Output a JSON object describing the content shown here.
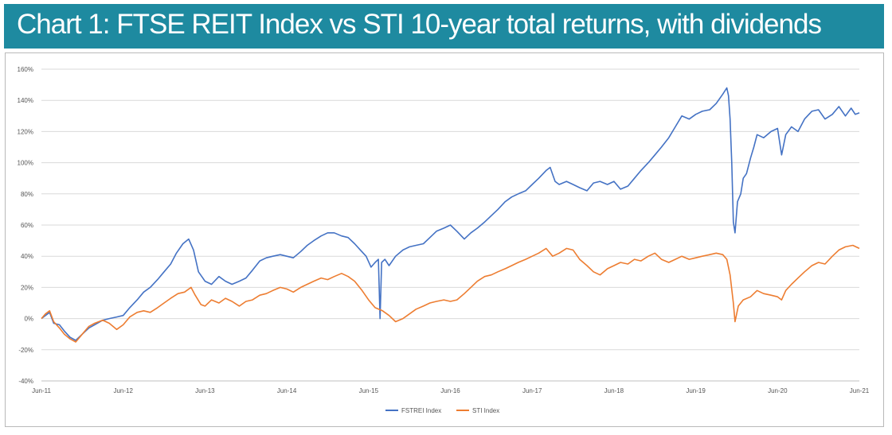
{
  "title": "Chart 1: FTSE REIT Index vs STI 10-year total returns, with dividends",
  "colors": {
    "banner": "#1e8aa0",
    "reit": "#4472c4",
    "sti": "#ed7d31",
    "grid": "#d9d9d9"
  },
  "chart_data": {
    "type": "line",
    "x_tick_labels": [
      "Jun-11",
      "Jun-12",
      "Jun-13",
      "Jun-14",
      "Jun-15",
      "Jun-16",
      "Jun-17",
      "Jun-18",
      "Jun-19",
      "Jun-20",
      "Jun-21"
    ],
    "y_tick_labels": [
      "160%",
      "140%",
      "120%",
      "100%",
      "80%",
      "60%",
      "40%",
      "20%",
      "0%",
      "-20%",
      "-40%"
    ],
    "ylim": [
      -40,
      160
    ],
    "xlim": [
      2011.5,
      2021.5
    ],
    "grid": true,
    "legend_position": "bottom",
    "xlabel": "",
    "ylabel": "",
    "series": [
      {
        "name": "FSTREI Index",
        "color": "#4472c4",
        "points": [
          [
            2011.5,
            0
          ],
          [
            2011.55,
            2
          ],
          [
            2011.6,
            4
          ],
          [
            2011.65,
            -3
          ],
          [
            2011.72,
            -4
          ],
          [
            2011.78,
            -8
          ],
          [
            2011.85,
            -12
          ],
          [
            2011.92,
            -14
          ],
          [
            2012.0,
            -10
          ],
          [
            2012.08,
            -6
          ],
          [
            2012.15,
            -4
          ],
          [
            2012.25,
            -1
          ],
          [
            2012.33,
            0
          ],
          [
            2012.42,
            1
          ],
          [
            2012.5,
            2
          ],
          [
            2012.58,
            7
          ],
          [
            2012.67,
            12
          ],
          [
            2012.75,
            17
          ],
          [
            2012.83,
            20
          ],
          [
            2012.92,
            25
          ],
          [
            2013.0,
            30
          ],
          [
            2013.08,
            35
          ],
          [
            2013.15,
            42
          ],
          [
            2013.23,
            48
          ],
          [
            2013.3,
            51
          ],
          [
            2013.36,
            44
          ],
          [
            2013.42,
            30
          ],
          [
            2013.5,
            24
          ],
          [
            2013.58,
            22
          ],
          [
            2013.67,
            27
          ],
          [
            2013.75,
            24
          ],
          [
            2013.83,
            22
          ],
          [
            2013.92,
            24
          ],
          [
            2014.0,
            26
          ],
          [
            2014.08,
            31
          ],
          [
            2014.17,
            37
          ],
          [
            2014.25,
            39
          ],
          [
            2014.33,
            40
          ],
          [
            2014.42,
            41
          ],
          [
            2014.5,
            40
          ],
          [
            2014.58,
            39
          ],
          [
            2014.67,
            43
          ],
          [
            2014.75,
            47
          ],
          [
            2014.83,
            50
          ],
          [
            2014.92,
            53
          ],
          [
            2015.0,
            55
          ],
          [
            2015.08,
            55
          ],
          [
            2015.17,
            53
          ],
          [
            2015.25,
            52
          ],
          [
            2015.33,
            48
          ],
          [
            2015.4,
            44
          ],
          [
            2015.47,
            40
          ],
          [
            2015.53,
            33
          ],
          [
            2015.58,
            36
          ],
          [
            2015.62,
            38
          ],
          [
            2015.64,
            0
          ],
          [
            2015.66,
            36
          ],
          [
            2015.7,
            38
          ],
          [
            2015.75,
            34
          ],
          [
            2015.83,
            40
          ],
          [
            2015.92,
            44
          ],
          [
            2016.0,
            46
          ],
          [
            2016.08,
            47
          ],
          [
            2016.17,
            48
          ],
          [
            2016.25,
            52
          ],
          [
            2016.33,
            56
          ],
          [
            2016.42,
            58
          ],
          [
            2016.5,
            60
          ],
          [
            2016.58,
            56
          ],
          [
            2016.67,
            51
          ],
          [
            2016.75,
            55
          ],
          [
            2016.83,
            58
          ],
          [
            2016.92,
            62
          ],
          [
            2017.0,
            66
          ],
          [
            2017.08,
            70
          ],
          [
            2017.17,
            75
          ],
          [
            2017.25,
            78
          ],
          [
            2017.33,
            80
          ],
          [
            2017.42,
            82
          ],
          [
            2017.5,
            86
          ],
          [
            2017.58,
            90
          ],
          [
            2017.67,
            95
          ],
          [
            2017.72,
            97
          ],
          [
            2017.78,
            88
          ],
          [
            2017.83,
            86
          ],
          [
            2017.92,
            88
          ],
          [
            2018.0,
            86
          ],
          [
            2018.08,
            84
          ],
          [
            2018.17,
            82
          ],
          [
            2018.25,
            87
          ],
          [
            2018.33,
            88
          ],
          [
            2018.42,
            86
          ],
          [
            2018.5,
            88
          ],
          [
            2018.58,
            83
          ],
          [
            2018.67,
            85
          ],
          [
            2018.75,
            90
          ],
          [
            2018.83,
            95
          ],
          [
            2018.92,
            100
          ],
          [
            2019.0,
            105
          ],
          [
            2019.08,
            110
          ],
          [
            2019.17,
            116
          ],
          [
            2019.25,
            123
          ],
          [
            2019.33,
            130
          ],
          [
            2019.42,
            128
          ],
          [
            2019.5,
            131
          ],
          [
            2019.58,
            133
          ],
          [
            2019.67,
            134
          ],
          [
            2019.75,
            138
          ],
          [
            2019.83,
            144
          ],
          [
            2019.88,
            148
          ],
          [
            2019.9,
            143
          ],
          [
            2019.92,
            128
          ],
          [
            2019.94,
            100
          ],
          [
            2019.96,
            62
          ],
          [
            2019.98,
            55
          ],
          [
            2020.01,
            75
          ],
          [
            2020.05,
            80
          ],
          [
            2020.08,
            90
          ],
          [
            2020.12,
            93
          ],
          [
            2020.17,
            103
          ],
          [
            2020.21,
            110
          ],
          [
            2020.25,
            118
          ],
          [
            2020.33,
            116
          ],
          [
            2020.42,
            120
          ],
          [
            2020.5,
            122
          ],
          [
            2020.55,
            105
          ],
          [
            2020.6,
            118
          ],
          [
            2020.67,
            123
          ],
          [
            2020.75,
            120
          ],
          [
            2020.83,
            128
          ],
          [
            2020.92,
            133
          ],
          [
            2021.0,
            134
          ],
          [
            2021.08,
            128
          ],
          [
            2021.17,
            131
          ],
          [
            2021.25,
            136
          ],
          [
            2021.33,
            130
          ],
          [
            2021.4,
            135
          ],
          [
            2021.45,
            131
          ],
          [
            2021.5,
            132
          ]
        ]
      },
      {
        "name": "STI Index",
        "color": "#ed7d31",
        "points": [
          [
            2011.5,
            0
          ],
          [
            2011.55,
            3
          ],
          [
            2011.6,
            5
          ],
          [
            2011.65,
            -2
          ],
          [
            2011.72,
            -6
          ],
          [
            2011.78,
            -10
          ],
          [
            2011.85,
            -13
          ],
          [
            2011.92,
            -15
          ],
          [
            2012.0,
            -10
          ],
          [
            2012.08,
            -5
          ],
          [
            2012.15,
            -3
          ],
          [
            2012.25,
            -1
          ],
          [
            2012.33,
            -3
          ],
          [
            2012.42,
            -7
          ],
          [
            2012.5,
            -4
          ],
          [
            2012.58,
            1
          ],
          [
            2012.67,
            4
          ],
          [
            2012.75,
            5
          ],
          [
            2012.83,
            4
          ],
          [
            2012.92,
            7
          ],
          [
            2013.0,
            10
          ],
          [
            2013.08,
            13
          ],
          [
            2013.17,
            16
          ],
          [
            2013.25,
            17
          ],
          [
            2013.33,
            20
          ],
          [
            2013.38,
            15
          ],
          [
            2013.45,
            9
          ],
          [
            2013.5,
            8
          ],
          [
            2013.58,
            12
          ],
          [
            2013.67,
            10
          ],
          [
            2013.75,
            13
          ],
          [
            2013.83,
            11
          ],
          [
            2013.92,
            8
          ],
          [
            2014.0,
            11
          ],
          [
            2014.08,
            12
          ],
          [
            2014.17,
            15
          ],
          [
            2014.25,
            16
          ],
          [
            2014.33,
            18
          ],
          [
            2014.42,
            20
          ],
          [
            2014.5,
            19
          ],
          [
            2014.58,
            17
          ],
          [
            2014.67,
            20
          ],
          [
            2014.75,
            22
          ],
          [
            2014.83,
            24
          ],
          [
            2014.92,
            26
          ],
          [
            2015.0,
            25
          ],
          [
            2015.08,
            27
          ],
          [
            2015.17,
            29
          ],
          [
            2015.25,
            27
          ],
          [
            2015.33,
            24
          ],
          [
            2015.42,
            18
          ],
          [
            2015.5,
            12
          ],
          [
            2015.58,
            7
          ],
          [
            2015.67,
            5
          ],
          [
            2015.75,
            2
          ],
          [
            2015.83,
            -2
          ],
          [
            2015.92,
            0
          ],
          [
            2016.0,
            3
          ],
          [
            2016.08,
            6
          ],
          [
            2016.17,
            8
          ],
          [
            2016.25,
            10
          ],
          [
            2016.33,
            11
          ],
          [
            2016.42,
            12
          ],
          [
            2016.5,
            11
          ],
          [
            2016.58,
            12
          ],
          [
            2016.67,
            16
          ],
          [
            2016.75,
            20
          ],
          [
            2016.83,
            24
          ],
          [
            2016.92,
            27
          ],
          [
            2017.0,
            28
          ],
          [
            2017.08,
            30
          ],
          [
            2017.17,
            32
          ],
          [
            2017.25,
            34
          ],
          [
            2017.33,
            36
          ],
          [
            2017.42,
            38
          ],
          [
            2017.5,
            40
          ],
          [
            2017.58,
            42
          ],
          [
            2017.67,
            45
          ],
          [
            2017.75,
            40
          ],
          [
            2017.83,
            42
          ],
          [
            2017.92,
            45
          ],
          [
            2018.0,
            44
          ],
          [
            2018.08,
            38
          ],
          [
            2018.17,
            34
          ],
          [
            2018.25,
            30
          ],
          [
            2018.33,
            28
          ],
          [
            2018.42,
            32
          ],
          [
            2018.5,
            34
          ],
          [
            2018.58,
            36
          ],
          [
            2018.67,
            35
          ],
          [
            2018.75,
            38
          ],
          [
            2018.83,
            37
          ],
          [
            2018.92,
            40
          ],
          [
            2019.0,
            42
          ],
          [
            2019.08,
            38
          ],
          [
            2019.17,
            36
          ],
          [
            2019.25,
            38
          ],
          [
            2019.33,
            40
          ],
          [
            2019.42,
            38
          ],
          [
            2019.5,
            39
          ],
          [
            2019.58,
            40
          ],
          [
            2019.67,
            41
          ],
          [
            2019.75,
            42
          ],
          [
            2019.83,
            41
          ],
          [
            2019.88,
            38
          ],
          [
            2019.92,
            28
          ],
          [
            2019.96,
            10
          ],
          [
            2019.98,
            -2
          ],
          [
            2020.02,
            8
          ],
          [
            2020.08,
            12
          ],
          [
            2020.17,
            14
          ],
          [
            2020.25,
            18
          ],
          [
            2020.33,
            16
          ],
          [
            2020.42,
            15
          ],
          [
            2020.5,
            14
          ],
          [
            2020.55,
            12
          ],
          [
            2020.6,
            18
          ],
          [
            2020.67,
            22
          ],
          [
            2020.75,
            26
          ],
          [
            2020.83,
            30
          ],
          [
            2020.92,
            34
          ],
          [
            2021.0,
            36
          ],
          [
            2021.08,
            35
          ],
          [
            2021.17,
            40
          ],
          [
            2021.25,
            44
          ],
          [
            2021.33,
            46
          ],
          [
            2021.42,
            47
          ],
          [
            2021.5,
            45
          ]
        ]
      }
    ]
  }
}
